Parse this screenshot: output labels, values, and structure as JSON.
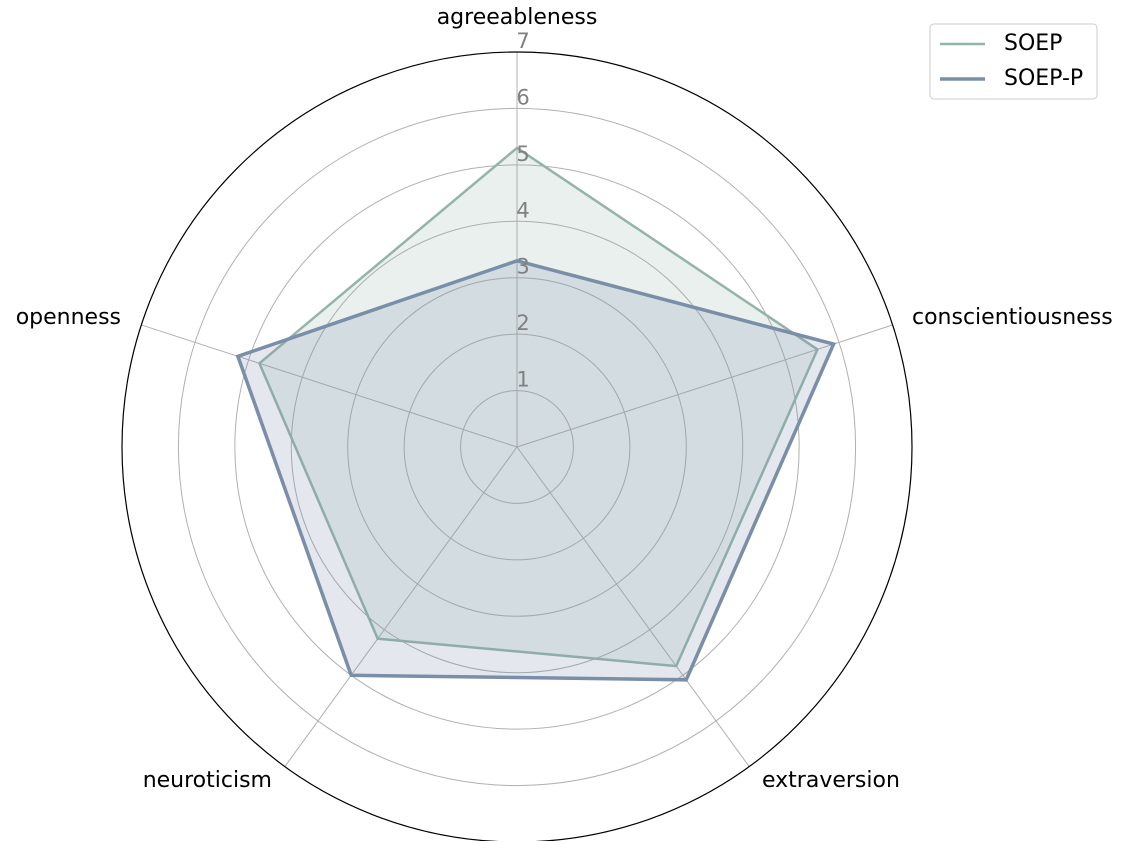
{
  "chart_data": {
    "type": "radar",
    "categories": [
      "agreeableness",
      "conscientiousness",
      "extraversion",
      "neuroticism",
      "openness"
    ],
    "series": [
      {
        "name": "SOEP",
        "color": "#94b4aa",
        "values": [
          5.3,
          5.6,
          4.8,
          4.2,
          4.8
        ]
      },
      {
        "name": "SOEP-P",
        "color": "#7a8ea8",
        "values": [
          3.3,
          5.9,
          5.1,
          5.0,
          5.2
        ]
      }
    ],
    "ylim": [
      0,
      7
    ],
    "yticks": [
      1,
      2,
      3,
      4,
      5,
      6,
      7
    ],
    "grid": true,
    "legend": "upper right"
  }
}
